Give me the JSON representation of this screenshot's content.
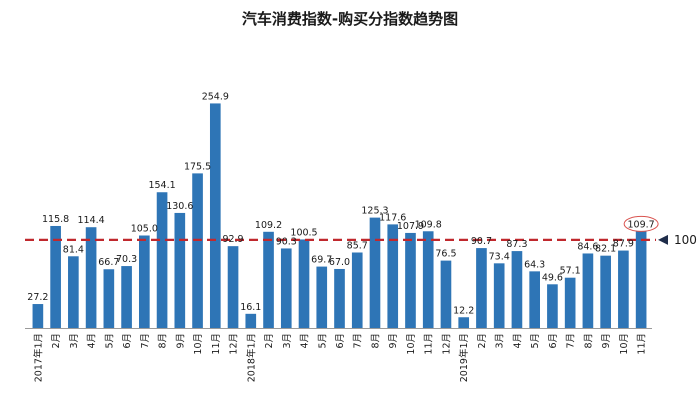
{
  "chart_data": {
    "type": "bar",
    "title": "汽车消费指数-购买分指数趋势图",
    "categories": [
      "2017年1月",
      "2月",
      "3月",
      "4月",
      "5月",
      "6月",
      "7月",
      "8月",
      "9月",
      "10月",
      "11月",
      "12月",
      "2018年1月",
      "2月",
      "3月",
      "4月",
      "5月",
      "6月",
      "7月",
      "8月",
      "9月",
      "10月",
      "11月",
      "12月",
      "2019年1月",
      "2月",
      "3月",
      "4月",
      "5月",
      "6月",
      "7月",
      "8月",
      "9月",
      "10月",
      "11月"
    ],
    "values": [
      27.2,
      115.8,
      81.4,
      114.4,
      66.7,
      70.3,
      105.0,
      154.1,
      130.6,
      175.5,
      254.9,
      92.9,
      16.1,
      109.2,
      90.3,
      100.5,
      69.7,
      67.0,
      85.7,
      125.3,
      117.6,
      107.9,
      109.8,
      76.5,
      12.2,
      90.7,
      73.4,
      87.3,
      64.3,
      49.6,
      57.1,
      84.6,
      82.1,
      87.9,
      109.7
    ],
    "value_labels": [
      "27.2",
      "115.8",
      "81.4",
      "114.4",
      "66.7",
      "70.3",
      "105.0",
      "154.1",
      "130.6",
      "175.5",
      "254.9",
      "92.9",
      "16.1",
      "109.2",
      "90.3",
      "100.5",
      "69.7",
      "67.0",
      "85.7",
      "125.3",
      "117.6",
      "107.9",
      "109.8",
      "76.5",
      "12.2",
      "90.7",
      "73.4",
      "87.3",
      "64.3",
      "49.6",
      "57.1",
      "84.6",
      "82.1",
      "87.9",
      "109.7"
    ],
    "ylim": [
      0,
      270
    ],
    "reference_line": {
      "value": 100,
      "label": "100",
      "color": "#c0282d",
      "style": "dashed"
    },
    "highlight_index": 34,
    "bar_color": "#2e75b6",
    "grid": false,
    "legend": "none"
  }
}
